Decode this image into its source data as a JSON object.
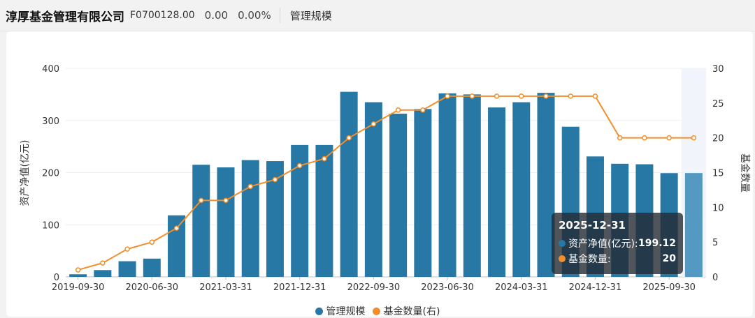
{
  "header": {
    "company": "淳厚基金管理有限公司",
    "code": "F0700128.00",
    "price": "0.00",
    "change": "0.00%",
    "tab": "管理规模"
  },
  "colors": {
    "bar": "#2778a4",
    "bar_highlight": "#5499c1",
    "line": "#f28e2b"
  },
  "chart_data": {
    "type": "bar",
    "x_tick_labels": [
      "2019-09-30",
      "2020-06-30",
      "2021-03-31",
      "2021-12-31",
      "2022-09-30",
      "2023-06-30",
      "2024-03-31",
      "2024-12-31",
      "2025-09-30"
    ],
    "categories": [
      "2019-09-30",
      "2019-12-31",
      "2020-03-31",
      "2020-06-30",
      "2020-09-30",
      "2020-12-31",
      "2021-03-31",
      "2021-06-30",
      "2021-09-30",
      "2021-12-31",
      "2022-03-31",
      "2022-06-30",
      "2022-09-30",
      "2022-12-31",
      "2023-03-31",
      "2023-06-30",
      "2023-09-30",
      "2023-12-31",
      "2024-03-31",
      "2024-06-30",
      "2024-09-30",
      "2024-12-31",
      "2025-03-31",
      "2025-06-30",
      "2025-09-30",
      "2025-12-31"
    ],
    "series": [
      {
        "name": "管理规模",
        "type": "bar",
        "axis": "left",
        "values": [
          5,
          13,
          30,
          35,
          118,
          215,
          210,
          224,
          222,
          253,
          253,
          355,
          335,
          313,
          322,
          352,
          350,
          325,
          335,
          353,
          288,
          231,
          217,
          216,
          199,
          199.12
        ]
      },
      {
        "name": "基金数量(右)",
        "type": "line",
        "axis": "right",
        "values": [
          1,
          2,
          4,
          5,
          7,
          11,
          11,
          13,
          14,
          16,
          17,
          20,
          22,
          24,
          24,
          26,
          26,
          26,
          26,
          26,
          26,
          26,
          20,
          20,
          20,
          20
        ]
      }
    ],
    "ylabel": "资产净值(亿元)",
    "ylabel_right": "基金数量",
    "ylim": [
      0,
      400
    ],
    "ylim_right": [
      0,
      30
    ],
    "y_ticks": [
      "0",
      "100",
      "200",
      "300",
      "400"
    ],
    "y_ticks_right": [
      "0",
      "5",
      "10",
      "15",
      "20",
      "25",
      "30"
    ],
    "grid": true,
    "legend_position": "bottom-center",
    "highlight_index": 25
  },
  "tooltip": {
    "title": "2025-12-31",
    "rows": [
      {
        "label": "资产净值(亿元):",
        "value": "199.12",
        "color": "#2778a4"
      },
      {
        "label": "基金数量:",
        "value": "20",
        "color": "#f28e2b"
      }
    ]
  },
  "legend": [
    {
      "label": "管理规模",
      "color": "#2778a4"
    },
    {
      "label": "基金数量(右)",
      "color": "#f28e2b"
    }
  ]
}
